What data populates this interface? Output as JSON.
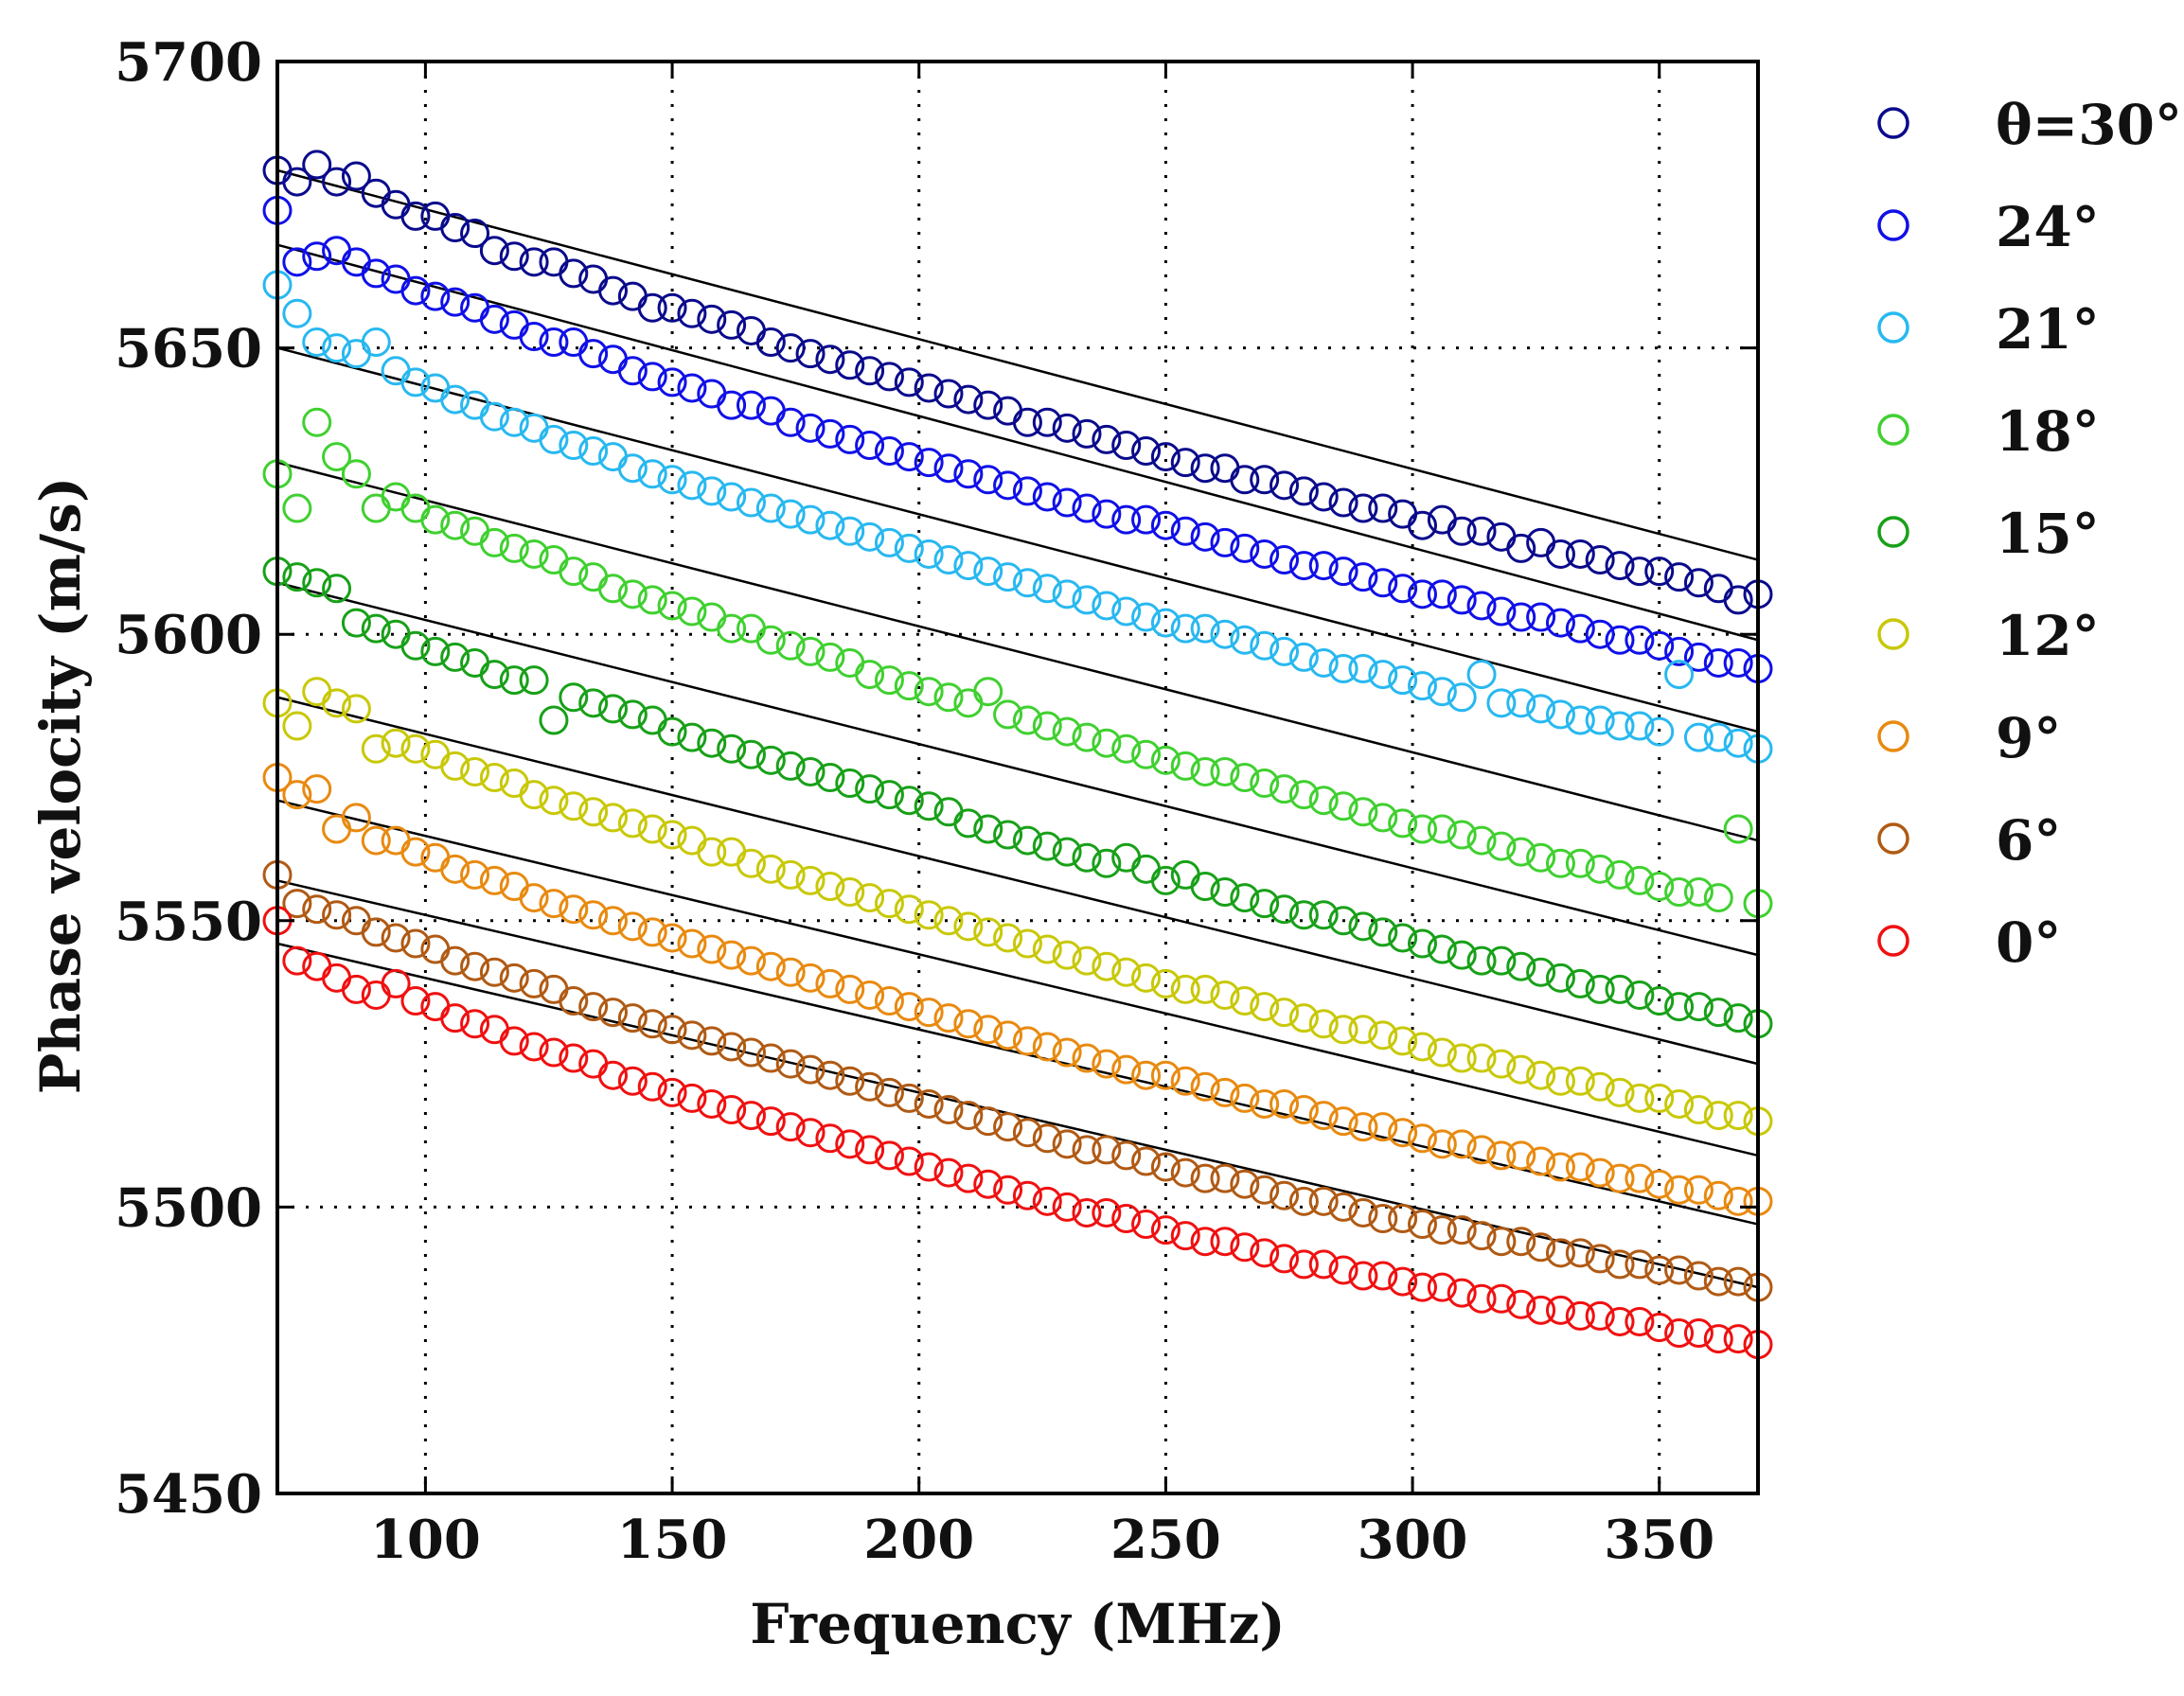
{
  "chart_data": {
    "type": "scatter",
    "title": "",
    "xlabel": "Frequency   (MHz)",
    "ylabel": "Phase velocity   (m/s)",
    "xlim": [
      70,
      370
    ],
    "ylim": [
      5450,
      5700
    ],
    "xticks": [
      100,
      150,
      200,
      250,
      300,
      350
    ],
    "xtick_labels": [
      "100",
      "150",
      "200",
      "250",
      "300",
      "350"
    ],
    "yticks": [
      5450,
      5500,
      5550,
      5600,
      5650,
      5700
    ],
    "ytick_labels": [
      "5450",
      "5500",
      "5550",
      "5600",
      "5650",
      "5700"
    ],
    "grid": true,
    "legend_position": "outside-right",
    "frequency_step_mhz": 4,
    "series": [
      {
        "name": "θ=30°",
        "color": "#0a0a8c",
        "fit": [
          [
            70,
            5681
          ],
          [
            370,
            5613
          ]
        ],
        "values": [
          5681,
          5679,
          5682,
          5679,
          5680,
          5677,
          5675,
          5673,
          5673,
          5671,
          5670,
          5667,
          5666,
          5665,
          5665,
          5663,
          5662,
          5660,
          5659,
          5657,
          5657,
          5656,
          5655,
          5654,
          5653,
          5651,
          5650,
          5649,
          5648,
          5647,
          5646,
          5645,
          5644,
          5643,
          5642,
          5641,
          5640,
          5639,
          5637,
          5637,
          5636,
          5635,
          5634,
          5633,
          5632,
          5631,
          5630,
          5629,
          5629,
          5627,
          5627,
          5626,
          5625,
          5624,
          5623,
          5622,
          5622,
          5621,
          5619,
          5620,
          5618,
          5618,
          5617,
          5615,
          5616,
          5614,
          5614,
          5613,
          5612,
          5611,
          5611,
          5610,
          5609,
          5608,
          5606,
          5607
        ]
      },
      {
        "name": "24°",
        "color": "#1010e8",
        "fit": [
          [
            70,
            5668
          ],
          [
            370,
            5599
          ]
        ],
        "values": [
          5674,
          5665,
          5666,
          5667,
          5665,
          5663,
          5662,
          5660,
          5659,
          5658,
          5657,
          5655,
          5654,
          5652,
          5651,
          5651,
          5649,
          5648,
          5646,
          5645,
          5644,
          5643,
          5642,
          5640,
          5640,
          5639,
          5637,
          5636,
          5635,
          5634,
          5633,
          5632,
          5631,
          5630,
          5629,
          5628,
          5627,
          5626,
          5625,
          5624,
          5623,
          5622,
          5621,
          5620,
          5620,
          5619,
          5618,
          5617,
          5616,
          5615,
          5614,
          5613,
          5612,
          5612,
          5611,
          5610,
          5609,
          5608,
          5607,
          5607,
          5606,
          5605,
          5604,
          5603,
          5603,
          5602,
          5601,
          5600,
          5599,
          5599,
          5598,
          5597,
          5596,
          5595,
          5595,
          5594
        ]
      },
      {
        "name": "21°",
        "color": "#28b8f0",
        "fit": [
          [
            70,
            5650
          ],
          [
            370,
            5583
          ]
        ],
        "values": [
          5661,
          5656,
          5651,
          5650,
          5649,
          5651,
          5646,
          5644,
          5643,
          5641,
          5640,
          5638,
          5637,
          5636,
          5634,
          5633,
          5632,
          5631,
          5629,
          5628,
          5627,
          5626,
          5625,
          5624,
          5623,
          5622,
          5621,
          5620,
          5619,
          5618,
          5617,
          5616,
          5615,
          5614,
          5613,
          5612,
          5611,
          5610,
          5609,
          5608,
          5607,
          5606,
          5605,
          5604,
          5603,
          5602,
          5601,
          5601,
          5600,
          5599,
          5598,
          5597,
          5596,
          5595,
          5594,
          5594,
          5593,
          5592,
          5591,
          5590,
          5589,
          5593,
          5588,
          5588,
          5587,
          5586,
          5585,
          5585,
          5584,
          5584,
          5583,
          5593,
          5582,
          5582,
          5581,
          5580
        ]
      },
      {
        "name": "18°",
        "color": "#40d030",
        "fit": [
          [
            70,
            5630
          ],
          [
            370,
            5564
          ]
        ],
        "values": [
          5628,
          5622,
          5637,
          5631,
          5628,
          5622,
          5624,
          5622,
          5620,
          5619,
          5618,
          5616,
          5615,
          5614,
          5613,
          5611,
          5610,
          5608,
          5607,
          5606,
          5605,
          5604,
          5603,
          5601,
          5601,
          5599,
          5598,
          5597,
          5596,
          5595,
          5593,
          5592,
          5591,
          5590,
          5589,
          5588,
          5590,
          5586,
          5585,
          5584,
          5583,
          5582,
          5581,
          5580,
          5579,
          5578,
          5577,
          5576,
          5576,
          5575,
          5574,
          5573,
          5572,
          5571,
          5570,
          5569,
          5568,
          5567,
          5566,
          5566,
          5565,
          5564,
          5563,
          5562,
          5561,
          5560,
          5560,
          5559,
          5558,
          5557,
          5556,
          5555,
          5555,
          5554,
          5566,
          5553
        ]
      },
      {
        "name": "15°",
        "color": "#18a018",
        "fit": [
          [
            70,
            5609
          ],
          [
            370,
            5544
          ]
        ],
        "values": [
          5611,
          5610,
          5609,
          5608,
          5602,
          5601,
          5600,
          5598,
          5597,
          5596,
          5595,
          5593,
          5592,
          5592,
          5585,
          5589,
          5588,
          5587,
          5586,
          5585,
          5583,
          5582,
          5581,
          5580,
          5579,
          5578,
          5577,
          5576,
          5575,
          5574,
          5573,
          5572,
          5571,
          5570,
          5569,
          5567,
          5566,
          5565,
          5564,
          5563,
          5562,
          5561,
          5560,
          5561,
          5559,
          5557,
          5558,
          5556,
          5555,
          5554,
          5553,
          5552,
          5551,
          5551,
          5550,
          5549,
          5548,
          5547,
          5546,
          5545,
          5544,
          5543,
          5543,
          5542,
          5541,
          5540,
          5539,
          5538,
          5538,
          5537,
          5536,
          5535,
          5535,
          5534,
          5533,
          5532
        ]
      },
      {
        "name": "12°",
        "color": "#c8c808",
        "fit": [
          [
            70,
            5589
          ],
          [
            370,
            5525
          ]
        ],
        "values": [
          5588,
          5584,
          5590,
          5588,
          5587,
          5580,
          5581,
          5580,
          5579,
          5577,
          5576,
          5575,
          5574,
          5572,
          5571,
          5570,
          5569,
          5568,
          5567,
          5566,
          5565,
          5564,
          5562,
          5562,
          5560,
          5559,
          5558,
          5557,
          5556,
          5555,
          5554,
          5553,
          5552,
          5551,
          5550,
          5549,
          5548,
          5547,
          5546,
          5545,
          5544,
          5543,
          5542,
          5541,
          5540,
          5539,
          5538,
          5538,
          5537,
          5536,
          5535,
          5534,
          5533,
          5532,
          5531,
          5531,
          5530,
          5529,
          5528,
          5527,
          5526,
          5526,
          5525,
          5524,
          5523,
          5522,
          5522,
          5521,
          5520,
          5519,
          5519,
          5518,
          5517,
          5516,
          5516,
          5515
        ]
      },
      {
        "name": "9°",
        "color": "#e88a10",
        "fit": [
          [
            70,
            5571
          ],
          [
            370,
            5509
          ]
        ],
        "values": [
          5575,
          5572,
          5573,
          5566,
          5568,
          5564,
          5564,
          5562,
          5561,
          5559,
          5558,
          5557,
          5556,
          5554,
          5553,
          5552,
          5551,
          5550,
          5549,
          5548,
          5547,
          5546,
          5545,
          5544,
          5543,
          5542,
          5541,
          5540,
          5539,
          5538,
          5537,
          5536,
          5535,
          5534,
          5533,
          5532,
          5531,
          5530,
          5529,
          5528,
          5527,
          5526,
          5525,
          5524,
          5523,
          5523,
          5522,
          5521,
          5520,
          5519,
          5518,
          5518,
          5517,
          5516,
          5515,
          5514,
          5514,
          5513,
          5512,
          5511,
          5511,
          5510,
          5509,
          5509,
          5508,
          5507,
          5507,
          5506,
          5505,
          5505,
          5504,
          5503,
          5503,
          5502,
          5501,
          5501
        ]
      },
      {
        "name": "6°",
        "color": "#b05a14",
        "fit": [
          [
            70,
            5557
          ],
          [
            370,
            5497
          ]
        ],
        "values": [
          5558,
          5553,
          5552,
          5551,
          5550,
          5548,
          5547,
          5546,
          5545,
          5543,
          5542,
          5541,
          5540,
          5539,
          5538,
          5536,
          5535,
          5534,
          5533,
          5532,
          5531,
          5530,
          5529,
          5528,
          5527,
          5526,
          5525,
          5524,
          5523,
          5522,
          5521,
          5520,
          5519,
          5518,
          5517,
          5516,
          5515,
          5514,
          5513,
          5512,
          5511,
          5510,
          5510,
          5509,
          5508,
          5507,
          5506,
          5505,
          5505,
          5504,
          5503,
          5502,
          5501,
          5501,
          5500,
          5499,
          5498,
          5498,
          5497,
          5496,
          5496,
          5495,
          5494,
          5494,
          5493,
          5492,
          5492,
          5491,
          5490,
          5490,
          5489,
          5489,
          5488,
          5487,
          5487,
          5486
        ]
      },
      {
        "name": "0°",
        "color": "#f01010",
        "fit": [
          [
            70,
            5546
          ],
          [
            370,
            5486
          ]
        ],
        "values": [
          5550,
          5543,
          5542,
          5540,
          5538,
          5537,
          5539,
          5536,
          5535,
          5533,
          5532,
          5531,
          5529,
          5528,
          5527,
          5526,
          5525,
          5523,
          5522,
          5521,
          5520,
          5519,
          5518,
          5517,
          5516,
          5515,
          5514,
          5513,
          5512,
          5511,
          5510,
          5509,
          5508,
          5507,
          5506,
          5505,
          5504,
          5503,
          5502,
          5501,
          5500,
          5499,
          5499,
          5498,
          5497,
          5496,
          5495,
          5494,
          5494,
          5493,
          5492,
          5491,
          5490,
          5490,
          5489,
          5488,
          5488,
          5487,
          5486,
          5486,
          5485,
          5484,
          5484,
          5483,
          5482,
          5482,
          5481,
          5481,
          5480,
          5480,
          5479,
          5478,
          5478,
          5477,
          5477,
          5476
        ]
      }
    ]
  }
}
